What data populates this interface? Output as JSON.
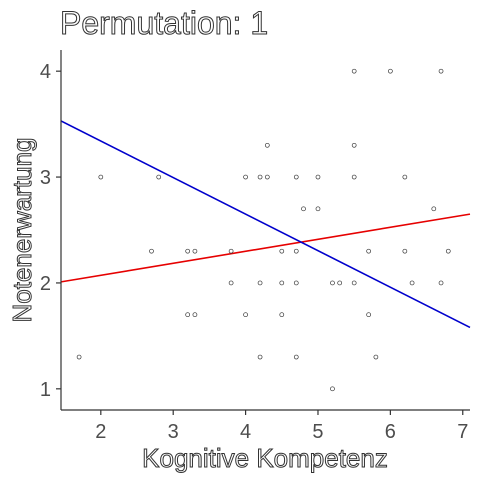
{
  "chart_data": {
    "type": "scatter",
    "title": "Permutation: 1",
    "xlabel": "Kognitive Kompetenz",
    "ylabel": "Notenerwartung",
    "xlim": [
      1.45,
      7.1
    ],
    "ylim": [
      0.8,
      4.2
    ],
    "xticks": [
      2,
      3,
      4,
      5,
      6,
      7
    ],
    "yticks": [
      1,
      2,
      3,
      4
    ],
    "grid": false,
    "points": [
      {
        "x": 1.7,
        "y": 1.3
      },
      {
        "x": 2.0,
        "y": 3.0
      },
      {
        "x": 2.7,
        "y": 2.3
      },
      {
        "x": 2.8,
        "y": 3.0
      },
      {
        "x": 3.2,
        "y": 2.3
      },
      {
        "x": 3.2,
        "y": 1.7
      },
      {
        "x": 3.3,
        "y": 2.3
      },
      {
        "x": 3.3,
        "y": 1.7
      },
      {
        "x": 3.8,
        "y": 2.0
      },
      {
        "x": 3.8,
        "y": 2.3
      },
      {
        "x": 4.0,
        "y": 3.0
      },
      {
        "x": 4.0,
        "y": 1.7
      },
      {
        "x": 4.2,
        "y": 3.0
      },
      {
        "x": 4.2,
        "y": 2.0
      },
      {
        "x": 4.2,
        "y": 1.3
      },
      {
        "x": 4.3,
        "y": 3.3
      },
      {
        "x": 4.3,
        "y": 3.0
      },
      {
        "x": 4.5,
        "y": 2.3
      },
      {
        "x": 4.5,
        "y": 2.0
      },
      {
        "x": 4.5,
        "y": 1.7
      },
      {
        "x": 4.7,
        "y": 3.0
      },
      {
        "x": 4.7,
        "y": 2.3
      },
      {
        "x": 4.7,
        "y": 2.0
      },
      {
        "x": 4.7,
        "y": 1.3
      },
      {
        "x": 4.8,
        "y": 2.7
      },
      {
        "x": 5.0,
        "y": 3.0
      },
      {
        "x": 5.0,
        "y": 2.7
      },
      {
        "x": 5.2,
        "y": 2.0
      },
      {
        "x": 5.2,
        "y": 1.0
      },
      {
        "x": 5.3,
        "y": 2.0
      },
      {
        "x": 5.5,
        "y": 4.0
      },
      {
        "x": 5.5,
        "y": 3.3
      },
      {
        "x": 5.5,
        "y": 3.0
      },
      {
        "x": 5.5,
        "y": 2.0
      },
      {
        "x": 5.7,
        "y": 2.3
      },
      {
        "x": 5.7,
        "y": 1.7
      },
      {
        "x": 5.8,
        "y": 1.3
      },
      {
        "x": 6.0,
        "y": 4.0
      },
      {
        "x": 6.2,
        "y": 3.0
      },
      {
        "x": 6.2,
        "y": 2.3
      },
      {
        "x": 6.3,
        "y": 2.0
      },
      {
        "x": 6.6,
        "y": 2.7
      },
      {
        "x": 6.7,
        "y": 4.0
      },
      {
        "x": 6.7,
        "y": 2.0
      },
      {
        "x": 6.8,
        "y": 2.3
      }
    ],
    "lines": [
      {
        "color": "#e60000",
        "x": [
          1.45,
          7.1
        ],
        "y": [
          2.01,
          2.65
        ]
      },
      {
        "color": "#0000cc",
        "x": [
          1.45,
          7.1
        ],
        "y": [
          3.53,
          1.58
        ]
      }
    ]
  }
}
